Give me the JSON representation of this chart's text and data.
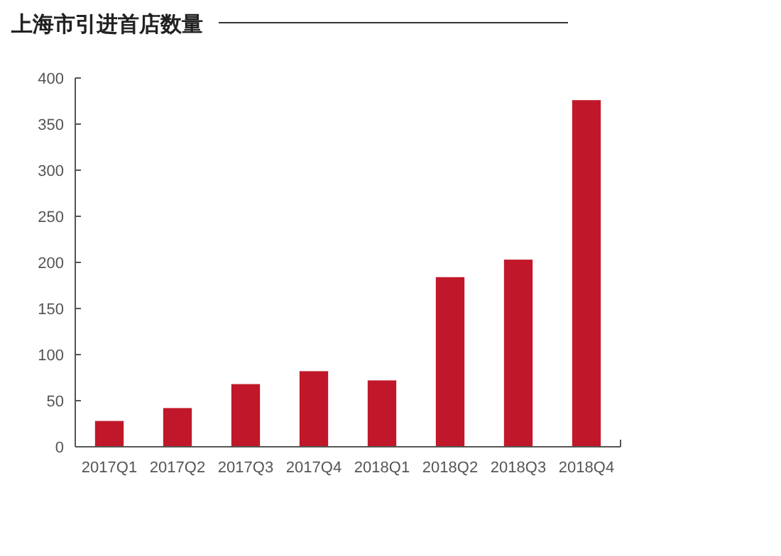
{
  "chart_data": {
    "type": "bar",
    "title": "上海市引进首店数量",
    "categories": [
      "2017Q1",
      "2017Q2",
      "2017Q3",
      "2017Q4",
      "2018Q1",
      "2018Q2",
      "2018Q3",
      "2018Q4"
    ],
    "values": [
      28,
      42,
      68,
      82,
      72,
      184,
      203,
      376
    ],
    "color": "#c0182a",
    "ylim": [
      0,
      400
    ],
    "yticks": [
      0,
      50,
      100,
      150,
      200,
      250,
      300,
      350,
      400
    ],
    "grid": false
  }
}
